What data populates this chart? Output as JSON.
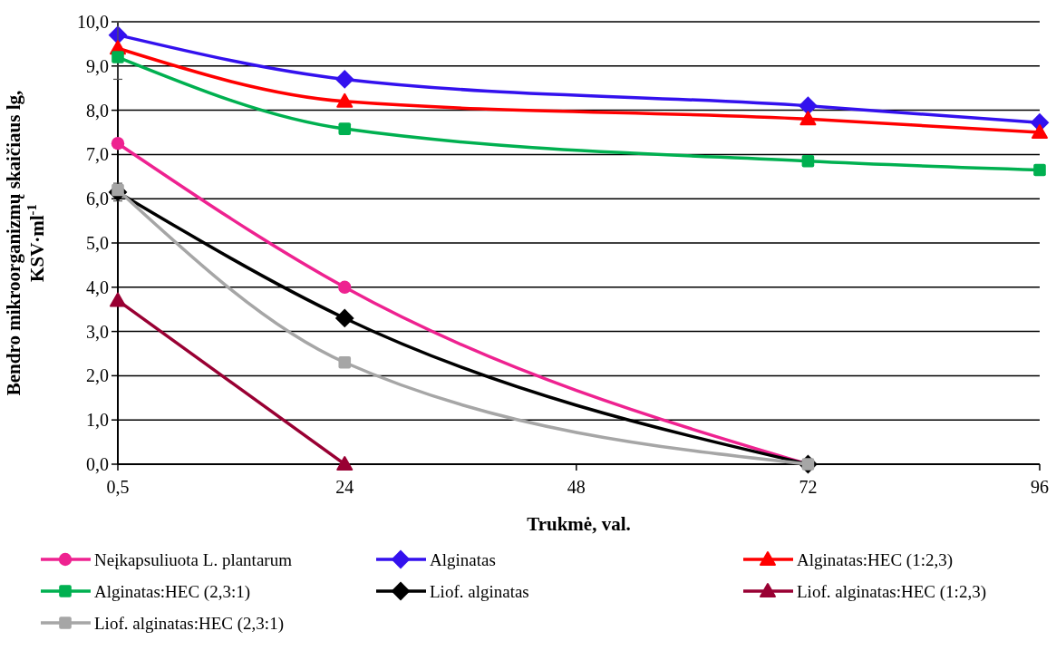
{
  "chart_data": {
    "type": "line",
    "xlabel": "Trukmė, val.",
    "ylabel": "Bendro mikroorganizmų skaičiaus lg,\nKSV·ml$^{-1}$",
    "xlim": [
      0.5,
      96
    ],
    "xticks": [
      {
        "value": 0.5,
        "label": "0,5"
      },
      24,
      48,
      72,
      96
    ],
    "ylim": [
      0,
      10
    ],
    "yticks": [
      {
        "value": 0,
        "label": "0,0"
      },
      {
        "value": 1,
        "label": "1,0"
      },
      {
        "value": 2,
        "label": "2,0"
      },
      {
        "value": 3,
        "label": "3,0"
      },
      {
        "value": 4,
        "label": "4,0"
      },
      {
        "value": 5,
        "label": "5,0"
      },
      {
        "value": 6,
        "label": "6,0"
      },
      {
        "value": 7,
        "label": "7,0"
      },
      {
        "value": 8,
        "label": "8,0"
      },
      {
        "value": 9,
        "label": "9,0"
      },
      {
        "value": 10,
        "label": "10,0"
      }
    ],
    "grid": "y",
    "legend": "bottom",
    "series": [
      {
        "name": "Neįkapsuliuota L. plantarum",
        "color": "#ee2290",
        "marker": "circle",
        "x": [
          0.5,
          24,
          72
        ],
        "values": [
          7.25,
          4.0,
          0
        ]
      },
      {
        "name": "Alginatas",
        "color": "#3311ee",
        "marker": "diamond",
        "x": [
          0.5,
          24,
          72,
          96
        ],
        "values": [
          9.7,
          8.7,
          8.1,
          7.72
        ]
      },
      {
        "name": "Alginatas:HEC (1:2,3)",
        "color": "#ff0000",
        "marker": "triangle",
        "x": [
          0.5,
          24,
          72,
          96
        ],
        "values": [
          9.4,
          8.2,
          7.8,
          7.5
        ],
        "errors": [
          [
            8.7,
            10.0
          ],
          null,
          null,
          null
        ]
      },
      {
        "name": "Alginatas:HEC (2,3:1)",
        "color": "#00b050",
        "marker": "square",
        "x": [
          0.5,
          24,
          72,
          96
        ],
        "values": [
          9.2,
          7.58,
          6.85,
          6.65
        ]
      },
      {
        "name": "Liof. alginatas",
        "color": "#000000",
        "marker": "diamond",
        "x": [
          0.5,
          24,
          72
        ],
        "values": [
          6.15,
          3.3,
          0
        ],
        "errors": [
          [
            5.95,
            6.35
          ],
          null,
          null
        ]
      },
      {
        "name": "Liof. alginatas:HEC (1:2,3)",
        "color": "#990033",
        "marker": "triangle",
        "x": [
          0.5,
          24
        ],
        "values": [
          3.7,
          0
        ]
      },
      {
        "name": "Liof. alginatas:HEC (2,3:1)",
        "color": "#a6a6a6",
        "marker": "square",
        "x": [
          0.5,
          24,
          72
        ],
        "values": [
          6.2,
          2.3,
          0
        ]
      }
    ]
  }
}
